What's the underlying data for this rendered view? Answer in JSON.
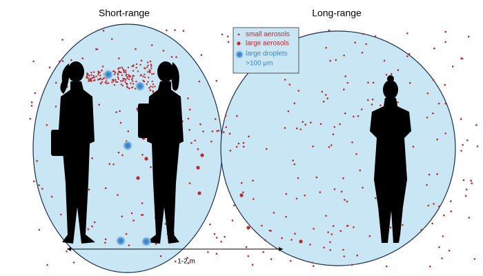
{
  "labels": {
    "short_range": "Short-range",
    "long_range": "Long-range",
    "distance": "1-2 m"
  },
  "legend": {
    "items": [
      {
        "label": "small aerosols"
      },
      {
        "label": "large aerosols"
      },
      {
        "label": "large droplets",
        "sublabel": ">100 μm"
      }
    ]
  }
}
